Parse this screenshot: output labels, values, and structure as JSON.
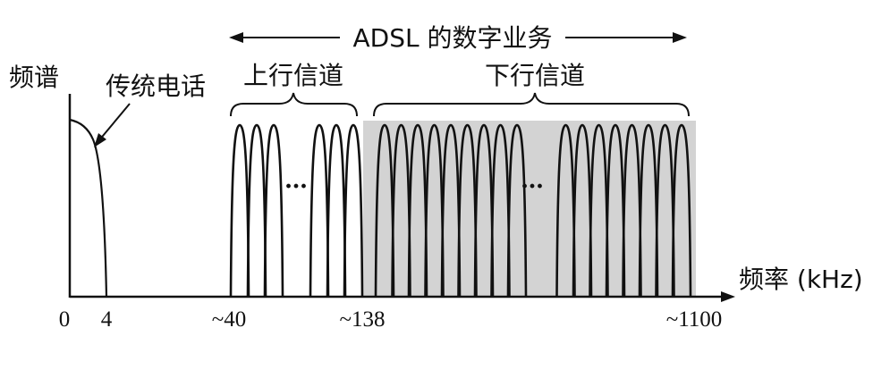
{
  "y_axis_label": "频谱",
  "x_axis_label": "频率 (kHz)",
  "adsl_banner": "ADSL 的数字业务",
  "voice_label": "传统电话",
  "upstream_label": "上行信道",
  "downstream_label": "下行信道",
  "ellipsis": "…",
  "ticks": [
    "0",
    "4",
    "~40",
    "~138",
    "~1100"
  ],
  "colors": {
    "ink": "#111111",
    "shade": "#d3d3d3"
  },
  "upstream_lobes": {
    "before_gap": 3,
    "after_gap": 3
  },
  "downstream_lobes": {
    "before_gap": 9,
    "after_gap": 8
  }
}
